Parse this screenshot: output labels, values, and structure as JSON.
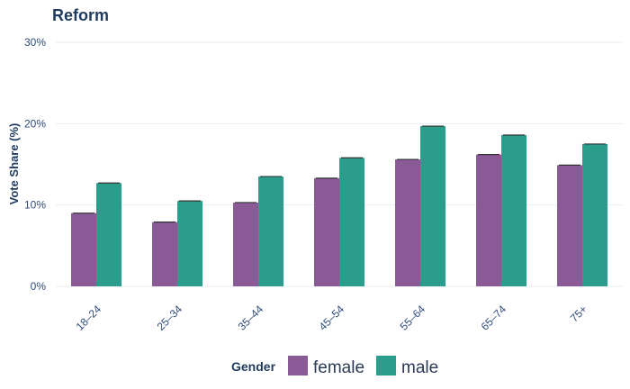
{
  "chart_data": {
    "type": "bar",
    "title": "Reform",
    "xlabel": "",
    "ylabel": "Vote Share (%)",
    "categories": [
      "18–24",
      "25–34",
      "35–44",
      "45–54",
      "55–64",
      "65–74",
      "75+"
    ],
    "series": [
      {
        "name": "female",
        "color": "#8a5a97",
        "values": [
          9.0,
          7.9,
          10.3,
          13.3,
          15.6,
          16.2,
          14.9
        ]
      },
      {
        "name": "male",
        "color": "#2a9d8c",
        "values": [
          12.7,
          10.5,
          13.5,
          15.8,
          19.7,
          18.6,
          17.5
        ]
      }
    ],
    "ylim": [
      0,
      30
    ],
    "yticks": [
      0,
      10,
      20,
      30
    ],
    "ytick_labels": [
      "0%",
      "10%",
      "20%",
      "30%"
    ],
    "legend": {
      "title": "Gender",
      "position": "bottom"
    },
    "grid": true,
    "error_bars": true
  }
}
